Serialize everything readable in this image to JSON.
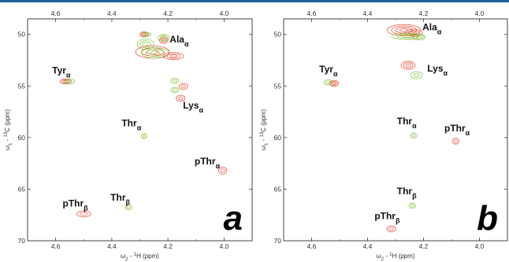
{
  "chart_data": [
    {
      "type": "scatter",
      "panel_label": "a",
      "xlabel": {
        "omega": "ω",
        "sub": "2",
        "dash": " - ",
        "sup": "1",
        "nucleus": "H",
        "unit": " (ppm)"
      },
      "ylabel": {
        "omega": "ω",
        "sub": "1",
        "dash": " - ",
        "sup": "13",
        "nucleus": "C",
        "unit": " (ppm)"
      },
      "xlim": [
        4.7,
        3.9
      ],
      "ylim": [
        48.5,
        70
      ],
      "xticks": [
        "4.6",
        "4.4",
        "4.2",
        "4.0"
      ],
      "xtick_values": [
        4.6,
        4.4,
        4.2,
        4.0
      ],
      "yticks": [
        "50",
        "55",
        "60",
        "65",
        "70"
      ],
      "ytick_values": [
        50,
        55,
        60,
        65,
        70
      ],
      "colors": {
        "red": "#e8503c",
        "green": "#86c440"
      },
      "peaks": [
        {
          "color": "red",
          "x": 4.285,
          "y": 50.0,
          "rx": 0.015,
          "ry": 0.25,
          "rings": 3
        },
        {
          "color": "green",
          "x": 4.275,
          "y": 50.0,
          "rx": 0.015,
          "ry": 0.2,
          "rings": 2
        },
        {
          "color": "green",
          "x": 4.215,
          "y": 50.35,
          "rx": 0.02,
          "ry": 0.35,
          "rings": 3
        },
        {
          "color": "red",
          "x": 4.215,
          "y": 50.6,
          "rx": 0.015,
          "ry": 0.3,
          "rings": 2
        },
        {
          "color": "green",
          "x": 4.28,
          "y": 50.95,
          "rx": 0.03,
          "ry": 0.5,
          "rings": 3
        },
        {
          "color": "red",
          "x": 4.255,
          "y": 51.7,
          "rx": 0.06,
          "ry": 0.6,
          "rings": 3
        },
        {
          "color": "green",
          "x": 4.245,
          "y": 51.8,
          "rx": 0.05,
          "ry": 0.5,
          "rings": 3
        },
        {
          "color": "red",
          "x": 4.18,
          "y": 52.1,
          "rx": 0.035,
          "ry": 0.35,
          "rings": 3
        },
        {
          "color": "red",
          "x": 4.565,
          "y": 54.55,
          "rx": 0.02,
          "ry": 0.25,
          "rings": 3
        },
        {
          "color": "green",
          "x": 4.55,
          "y": 54.55,
          "rx": 0.018,
          "ry": 0.25,
          "rings": 2
        },
        {
          "color": "green",
          "x": 4.175,
          "y": 54.5,
          "rx": 0.014,
          "ry": 0.25,
          "rings": 2
        },
        {
          "color": "red",
          "x": 4.145,
          "y": 55.05,
          "rx": 0.016,
          "ry": 0.3,
          "rings": 2
        },
        {
          "color": "green",
          "x": 4.175,
          "y": 55.4,
          "rx": 0.014,
          "ry": 0.25,
          "rings": 2
        },
        {
          "color": "red",
          "x": 4.155,
          "y": 56.2,
          "rx": 0.016,
          "ry": 0.3,
          "rings": 2
        },
        {
          "color": "green",
          "x": 4.285,
          "y": 59.85,
          "rx": 0.01,
          "ry": 0.25,
          "rings": 2
        },
        {
          "color": "red",
          "x": 4.005,
          "y": 63.2,
          "rx": 0.015,
          "ry": 0.35,
          "rings": 2
        },
        {
          "color": "red",
          "x": 4.5,
          "y": 67.4,
          "rx": 0.025,
          "ry": 0.3,
          "rings": 2
        },
        {
          "color": "green",
          "x": 4.34,
          "y": 66.75,
          "rx": 0.012,
          "ry": 0.25,
          "rings": 2
        }
      ],
      "labels": [
        {
          "text": "Ala",
          "sub": "α",
          "x": 4.16,
          "y": 50.8
        },
        {
          "text": "Tyr",
          "sub": "α",
          "x": 4.58,
          "y": 53.8
        },
        {
          "text": "Lys",
          "sub": "α",
          "x": 4.11,
          "y": 57.2
        },
        {
          "text": "Thr",
          "sub": "α",
          "x": 4.33,
          "y": 58.9
        },
        {
          "text": "pThr",
          "sub": "α",
          "x": 4.06,
          "y": 62.6
        },
        {
          "text": "pThr",
          "sub": "β",
          "x": 4.53,
          "y": 66.7
        },
        {
          "text": "Thr",
          "sub": "β",
          "x": 4.37,
          "y": 66.1
        }
      ]
    },
    {
      "type": "scatter",
      "panel_label": "b",
      "xlabel": {
        "omega": "ω",
        "sub": "2",
        "dash": " - ",
        "sup": "1",
        "nucleus": "H",
        "unit": " (ppm)"
      },
      "ylabel": {
        "omega": "ω",
        "sub": "1",
        "dash": " - ",
        "sup": "13",
        "nucleus": "C",
        "unit": " (ppm)"
      },
      "xlim": [
        4.7,
        3.9
      ],
      "ylim": [
        48.5,
        70
      ],
      "xticks": [
        "4.6",
        "4.4",
        "4.2",
        "4.0"
      ],
      "xtick_values": [
        4.6,
        4.4,
        4.2,
        4.0
      ],
      "yticks": [
        "50",
        "55",
        "60",
        "65",
        "70"
      ],
      "ytick_values": [
        50,
        55,
        60,
        65,
        70
      ],
      "colors": {
        "red": "#e8503c",
        "green": "#86c440"
      },
      "peaks": [
        {
          "color": "red",
          "x": 4.27,
          "y": 49.6,
          "rx": 0.06,
          "ry": 0.55,
          "rings": 4
        },
        {
          "color": "red",
          "x": 4.235,
          "y": 49.85,
          "rx": 0.03,
          "ry": 0.35,
          "rings": 3
        },
        {
          "color": "green",
          "x": 4.255,
          "y": 50.2,
          "rx": 0.06,
          "ry": 0.3,
          "rings": 3
        },
        {
          "color": "green",
          "x": 4.215,
          "y": 50.3,
          "rx": 0.02,
          "ry": 0.25,
          "rings": 2
        },
        {
          "color": "red",
          "x": 4.52,
          "y": 54.75,
          "rx": 0.016,
          "ry": 0.3,
          "rings": 3
        },
        {
          "color": "green",
          "x": 4.54,
          "y": 54.65,
          "rx": 0.016,
          "ry": 0.25,
          "rings": 2
        },
        {
          "color": "red",
          "x": 4.255,
          "y": 53.0,
          "rx": 0.025,
          "ry": 0.4,
          "rings": 3
        },
        {
          "color": "green",
          "x": 4.225,
          "y": 53.95,
          "rx": 0.02,
          "ry": 0.35,
          "rings": 2
        },
        {
          "color": "green",
          "x": 4.235,
          "y": 59.8,
          "rx": 0.012,
          "ry": 0.25,
          "rings": 2
        },
        {
          "color": "red",
          "x": 4.085,
          "y": 60.35,
          "rx": 0.012,
          "ry": 0.3,
          "rings": 2
        },
        {
          "color": "green",
          "x": 4.24,
          "y": 66.6,
          "rx": 0.012,
          "ry": 0.25,
          "rings": 2
        },
        {
          "color": "red",
          "x": 4.315,
          "y": 68.85,
          "rx": 0.016,
          "ry": 0.3,
          "rings": 2
        }
      ],
      "labels": [
        {
          "text": "Ala",
          "sub": "α",
          "x": 4.17,
          "y": 49.6
        },
        {
          "text": "Tyr",
          "sub": "α",
          "x": 4.54,
          "y": 53.7
        },
        {
          "text": "Lys",
          "sub": "α",
          "x": 4.15,
          "y": 53.6
        },
        {
          "text": "Thr",
          "sub": "α",
          "x": 4.26,
          "y": 58.7
        },
        {
          "text": "pThr",
          "sub": "α",
          "x": 4.08,
          "y": 59.4
        },
        {
          "text": "Thr",
          "sub": "β",
          "x": 4.26,
          "y": 65.5
        },
        {
          "text": "pThr",
          "sub": "β",
          "x": 4.33,
          "y": 67.9
        }
      ]
    }
  ]
}
